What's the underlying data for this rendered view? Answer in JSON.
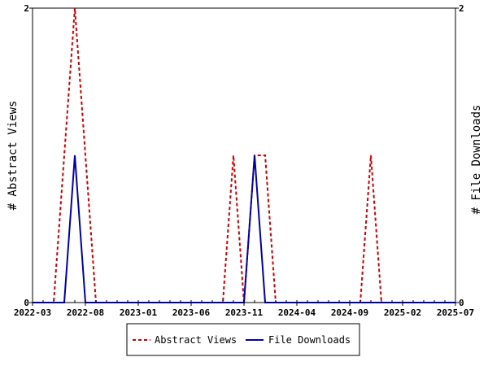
{
  "chart_data": {
    "type": "line",
    "x_unit": "month",
    "x_range": [
      "2022-03",
      "2025-07"
    ],
    "x_tick_labels": [
      "2022-03",
      "2022-08",
      "2023-01",
      "2023-06",
      "2023-11",
      "2024-04",
      "2024-09",
      "2025-02",
      "2025-07"
    ],
    "y_left": {
      "label": "# Abstract Views",
      "range": [
        0,
        2
      ],
      "tick_labels": [
        "0",
        "2"
      ]
    },
    "y_right": {
      "label": "# File Downloads",
      "range": [
        0,
        2
      ],
      "tick_labels": [
        "0",
        "2"
      ]
    },
    "grid": false,
    "legend_placement": "bottom",
    "series": [
      {
        "name": "Abstract Views",
        "axis": "left",
        "color": "#cc0000",
        "dash": "dashed",
        "points": [
          [
            "2022-03",
            0
          ],
          [
            "2022-04",
            0
          ],
          [
            "2022-05",
            0
          ],
          [
            "2022-06",
            1
          ],
          [
            "2022-07",
            2
          ],
          [
            "2022-08",
            1
          ],
          [
            "2022-09",
            0
          ],
          [
            "2022-10",
            0
          ],
          [
            "2022-11",
            0
          ],
          [
            "2022-12",
            0
          ],
          [
            "2023-01",
            0
          ],
          [
            "2023-02",
            0
          ],
          [
            "2023-03",
            0
          ],
          [
            "2023-04",
            0
          ],
          [
            "2023-05",
            0
          ],
          [
            "2023-06",
            0
          ],
          [
            "2023-07",
            0
          ],
          [
            "2023-08",
            0
          ],
          [
            "2023-09",
            0
          ],
          [
            "2023-10",
            1
          ],
          [
            "2023-11",
            0
          ],
          [
            "2023-12",
            1
          ],
          [
            "2024-01",
            1
          ],
          [
            "2024-02",
            0
          ],
          [
            "2024-03",
            0
          ],
          [
            "2024-04",
            0
          ],
          [
            "2024-05",
            0
          ],
          [
            "2024-06",
            0
          ],
          [
            "2024-07",
            0
          ],
          [
            "2024-08",
            0
          ],
          [
            "2024-09",
            0
          ],
          [
            "2024-10",
            0
          ],
          [
            "2024-11",
            1
          ],
          [
            "2024-12",
            0
          ],
          [
            "2025-01",
            0
          ],
          [
            "2025-02",
            0
          ],
          [
            "2025-03",
            0
          ],
          [
            "2025-04",
            0
          ],
          [
            "2025-05",
            0
          ],
          [
            "2025-06",
            0
          ],
          [
            "2025-07",
            0
          ]
        ]
      },
      {
        "name": "File Downloads",
        "axis": "right",
        "color": "#0000aa",
        "dash": "solid",
        "points": [
          [
            "2022-03",
            0
          ],
          [
            "2022-04",
            0
          ],
          [
            "2022-05",
            0
          ],
          [
            "2022-06",
            0
          ],
          [
            "2022-07",
            1
          ],
          [
            "2022-08",
            0
          ],
          [
            "2022-09",
            0
          ],
          [
            "2022-10",
            0
          ],
          [
            "2022-11",
            0
          ],
          [
            "2022-12",
            0
          ],
          [
            "2023-01",
            0
          ],
          [
            "2023-02",
            0
          ],
          [
            "2023-03",
            0
          ],
          [
            "2023-04",
            0
          ],
          [
            "2023-05",
            0
          ],
          [
            "2023-06",
            0
          ],
          [
            "2023-07",
            0
          ],
          [
            "2023-08",
            0
          ],
          [
            "2023-09",
            0
          ],
          [
            "2023-10",
            0
          ],
          [
            "2023-11",
            0
          ],
          [
            "2023-12",
            1
          ],
          [
            "2024-01",
            0
          ],
          [
            "2024-02",
            0
          ],
          [
            "2024-03",
            0
          ],
          [
            "2024-04",
            0
          ],
          [
            "2024-05",
            0
          ],
          [
            "2024-06",
            0
          ],
          [
            "2024-07",
            0
          ],
          [
            "2024-08",
            0
          ],
          [
            "2024-09",
            0
          ],
          [
            "2024-10",
            0
          ],
          [
            "2024-11",
            0
          ],
          [
            "2024-12",
            0
          ],
          [
            "2025-01",
            0
          ],
          [
            "2025-02",
            0
          ],
          [
            "2025-03",
            0
          ],
          [
            "2025-04",
            0
          ],
          [
            "2025-05",
            0
          ],
          [
            "2025-06",
            0
          ],
          [
            "2025-07",
            0
          ]
        ]
      }
    ]
  }
}
